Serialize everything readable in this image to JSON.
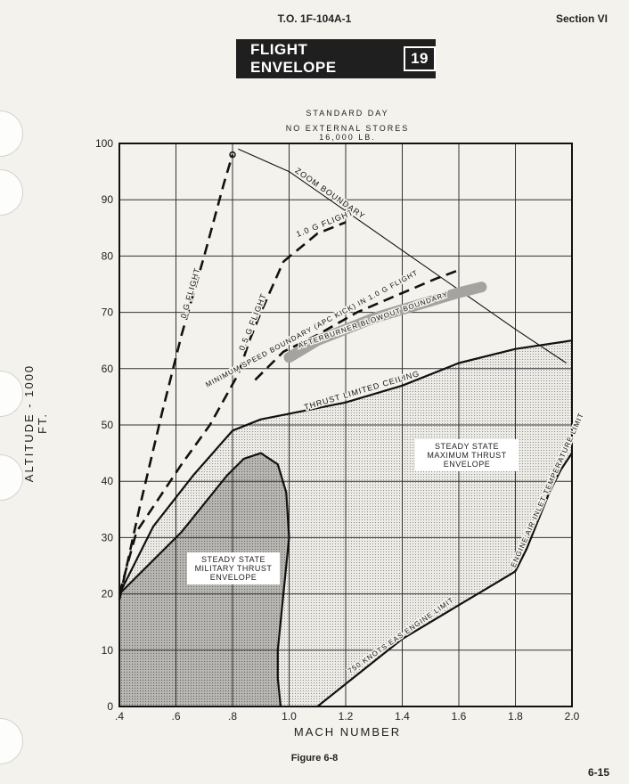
{
  "header": {
    "doc_number": "T.O. 1F-104A-1",
    "section": "Section VI"
  },
  "title": {
    "text": "FLIGHT ENVELOPE",
    "number": "19"
  },
  "notes": {
    "line1": "STANDARD DAY",
    "line2": "NO EXTERNAL STORES",
    "line3": "16,000 LB."
  },
  "footer": {
    "figure_caption": "Figure 6-8",
    "page_number": "6-15"
  },
  "chart_data": {
    "type": "line",
    "xlabel": "MACH NUMBER",
    "ylabel": "ALTITUDE - 1000 FT.",
    "xlim": [
      0.4,
      2.0
    ],
    "ylim": [
      0,
      100
    ],
    "grid": true,
    "x_ticks": [
      ".4",
      ".6",
      ".8",
      "1.0",
      "1.2",
      "1.4",
      "1.6",
      "1.8",
      "2.0"
    ],
    "y_ticks": [
      "0",
      "10",
      "20",
      "30",
      "40",
      "50",
      "60",
      "70",
      "80",
      "90",
      "100"
    ],
    "series": [
      {
        "name": "0.G FLIGHT",
        "style": "dashed",
        "x": [
          0.4,
          0.47,
          0.55,
          0.62,
          0.7,
          0.77,
          0.8
        ],
        "y": [
          19,
          35,
          52,
          66,
          80,
          93,
          98
        ]
      },
      {
        "name": "0.5 G FLIGHT",
        "style": "dashed",
        "x": [
          0.4,
          0.46,
          0.54,
          0.62,
          0.72,
          0.82,
          0.86,
          0.9,
          0.98
        ],
        "y": [
          20,
          31,
          37,
          43,
          50,
          59,
          65,
          70,
          79
        ]
      },
      {
        "name": "1.0 G FLIGHT",
        "style": "dashed",
        "x": [
          0.98,
          1.1,
          1.2
        ],
        "y": [
          79,
          84,
          86
        ]
      },
      {
        "name": "MINIMUM SPEED BOUNDARY (APC KICK) IN 1.0 G FLIGHT",
        "style": "dashed",
        "x": [
          0.88,
          0.98,
          1.1,
          1.24,
          1.38,
          1.52,
          1.6
        ],
        "y": [
          58,
          63,
          66,
          70,
          73,
          76,
          77.5
        ]
      },
      {
        "name": "ZOOM BOUNDARY",
        "style": "solid-thin",
        "x": [
          0.82,
          1.0,
          1.2,
          1.4,
          1.6,
          1.8,
          1.98
        ],
        "y": [
          99,
          95,
          88,
          81,
          74,
          67,
          61
        ]
      },
      {
        "name": "AFTERBURNER BLOWOUT BOUNDARY",
        "style": "band",
        "x": [
          1.0,
          1.1,
          1.2,
          1.3,
          1.4,
          1.5,
          1.6,
          1.68
        ],
        "y": [
          62,
          65,
          67,
          69,
          70.5,
          72,
          73.5,
          74.5
        ]
      },
      {
        "name": "THRUST LIMITED CEILING",
        "style": "solid",
        "x": [
          0.4,
          0.52,
          0.66,
          0.8,
          0.9,
          1.0,
          1.2,
          1.4,
          1.6,
          1.8,
          2.0
        ],
        "y": [
          20,
          32,
          41,
          49,
          51,
          52,
          54,
          57,
          61,
          63.5,
          65
        ]
      },
      {
        "name": "MILITARY THRUST",
        "style": "solid",
        "x": [
          0.4,
          0.62,
          0.78,
          0.84,
          0.9,
          0.96,
          0.99,
          1.0,
          0.98,
          0.96,
          0.96,
          0.97
        ],
        "y": [
          20,
          31,
          41,
          44,
          45,
          43,
          38,
          30,
          20,
          10,
          5,
          0
        ]
      },
      {
        "name": "750 KNOTS EAS ENGINE LIMIT",
        "style": "solid",
        "x": [
          1.1,
          1.2,
          1.3,
          1.4,
          1.5,
          1.6,
          1.7,
          1.8
        ],
        "y": [
          0,
          4,
          8,
          12,
          15,
          18,
          21,
          24
        ]
      },
      {
        "name": "ENGINE AIR INLET TEMPERATURE LIMIT",
        "style": "solid",
        "x": [
          1.8,
          1.84,
          1.88,
          1.92,
          1.96,
          2.0
        ],
        "y": [
          24,
          28,
          33,
          38,
          42,
          45
        ]
      }
    ],
    "regions": [
      {
        "label": "STEADY STATE MILITARY THRUST ENVELOPE"
      },
      {
        "label": "STEADY STATE MAXIMUM THRUST ENVELOPE"
      }
    ]
  }
}
